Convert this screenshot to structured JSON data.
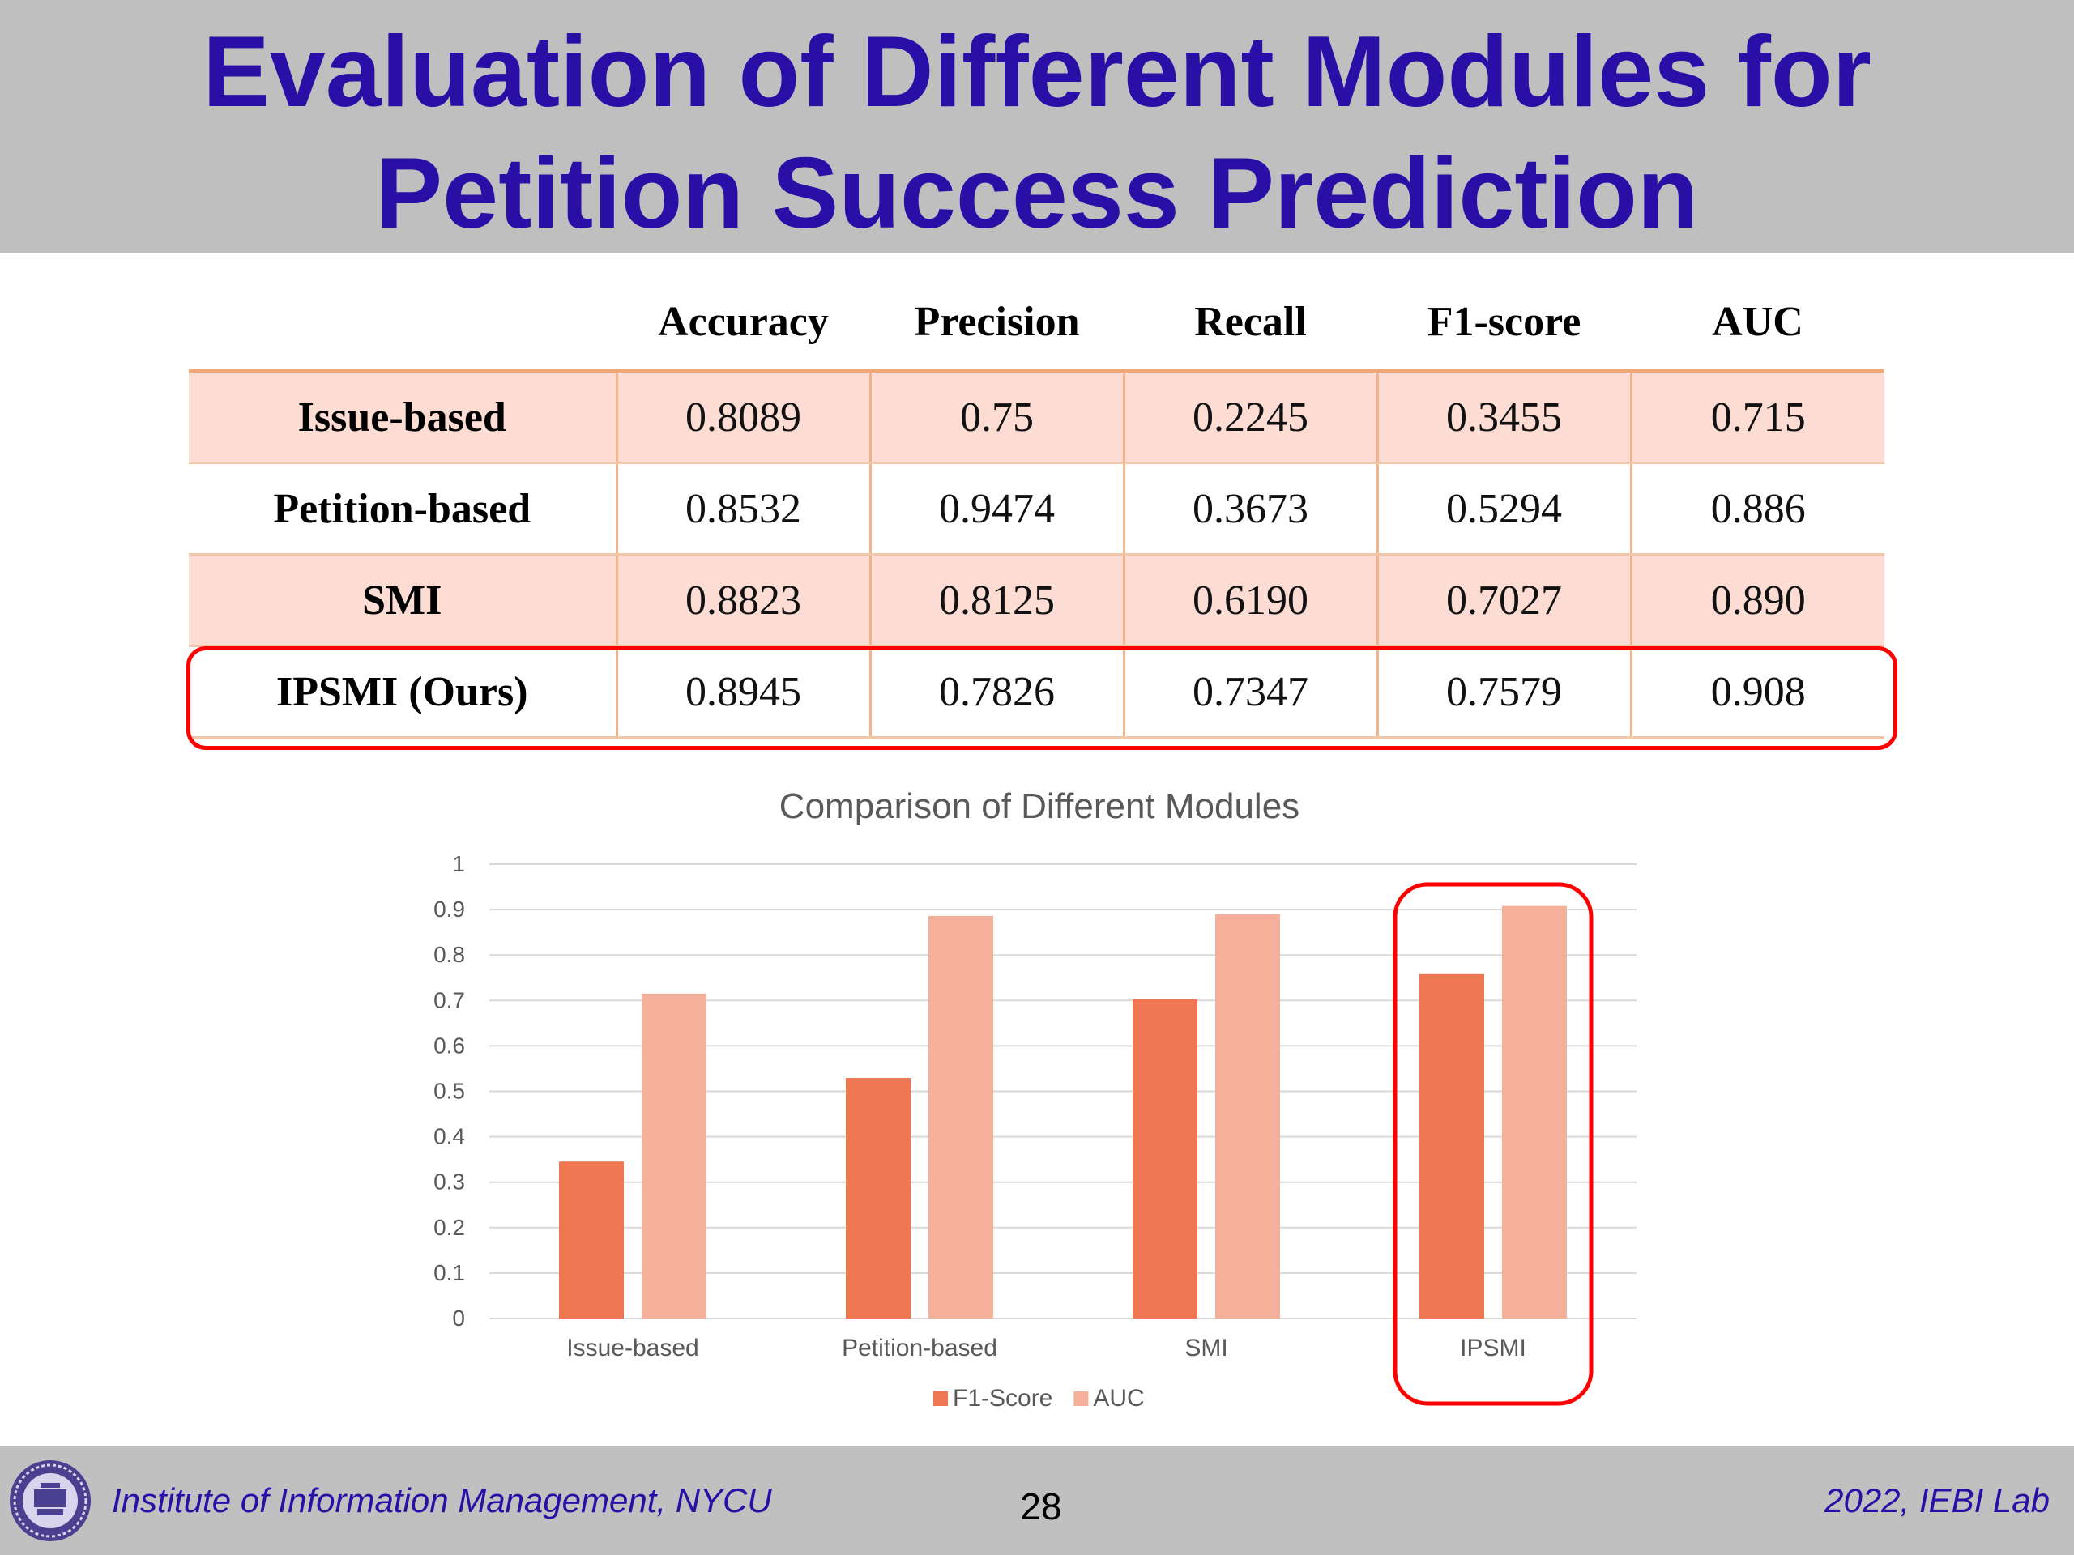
{
  "slide": {
    "title_line1": "Evaluation of Different Modules for",
    "title_line2": "Petition Success Prediction",
    "page_number": "28",
    "footer_left": "Institute of Information Management, NYCU",
    "footer_right": "2022, IEBI Lab"
  },
  "table": {
    "headers": [
      "",
      "Accuracy",
      "Precision",
      "Recall",
      "F1-score",
      "AUC"
    ],
    "rows": [
      [
        "Issue-based",
        "0.8089",
        "0.75",
        "0.2245",
        "0.3455",
        "0.715"
      ],
      [
        "Petition-based",
        "0.8532",
        "0.9474",
        "0.3673",
        "0.5294",
        "0.886"
      ],
      [
        "SMI",
        "0.8823",
        "0.8125",
        "0.6190",
        "0.7027",
        "0.890"
      ],
      [
        "IPSMI (Ours)",
        "0.8945",
        "0.7826",
        "0.7347",
        "0.7579",
        "0.908"
      ]
    ],
    "highlighted_row": "IPSMI (Ours)"
  },
  "chart_data": {
    "type": "bar",
    "title": "Comparison of Different Modules",
    "categories": [
      "Issue-based",
      "Petition-based",
      "SMI",
      "IPSMI"
    ],
    "series": [
      {
        "name": "F1-Score",
        "values": [
          0.3455,
          0.5294,
          0.7027,
          0.7579
        ],
        "color": "#ee7752"
      },
      {
        "name": "AUC",
        "values": [
          0.715,
          0.886,
          0.89,
          0.908
        ],
        "color": "#f5b09b"
      }
    ],
    "yticks": [
      "0",
      "0.1",
      "0.2",
      "0.3",
      "0.4",
      "0.5",
      "0.6",
      "0.7",
      "0.8",
      "0.9",
      "1"
    ],
    "ylim": [
      0,
      1
    ],
    "grid": true,
    "legend_position": "bottom",
    "highlighted_category": "IPSMI"
  },
  "colors": {
    "title": "#2a0fa6",
    "band_bg": "#fcdcd3",
    "table_border": "#f2b48a",
    "highlight": "#ff0000",
    "header_bg": "#bfbfbf"
  },
  "icons": {
    "footer_logo": "nycu-seal-icon"
  }
}
